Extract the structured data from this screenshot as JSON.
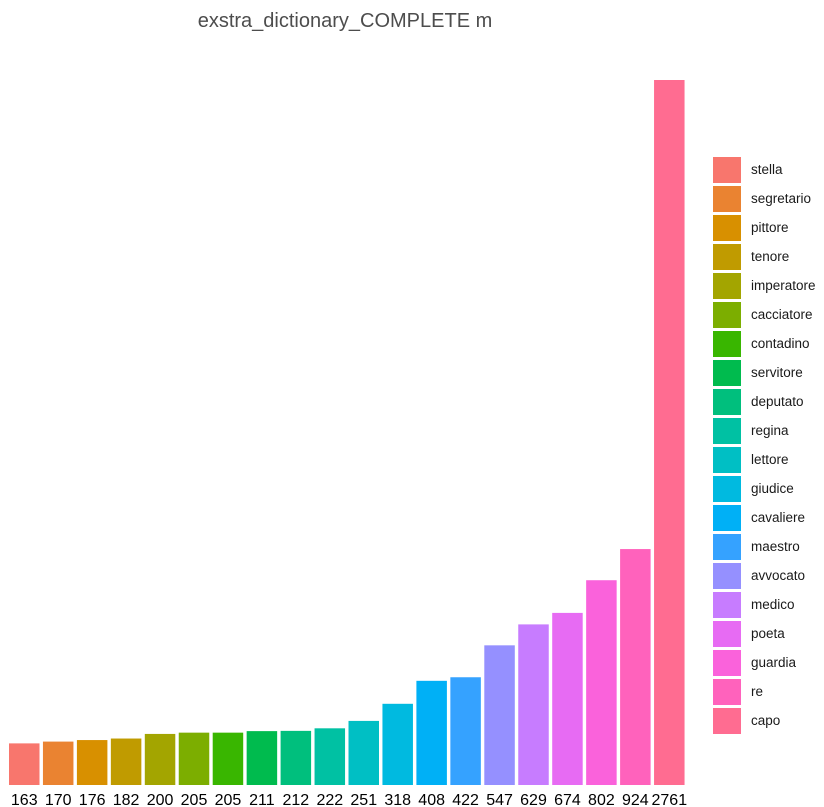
{
  "chart_data": {
    "type": "bar",
    "title": "exstra_dictionary_COMPLETE m",
    "xlabel": "",
    "ylabel": "",
    "ylim": [
      0,
      2761
    ],
    "grid": false,
    "legend_position": "right",
    "categories": [
      "stella",
      "segretario",
      "pittore",
      "tenore",
      "imperatore",
      "cacciatore",
      "contadino",
      "servitore",
      "deputato",
      "regina",
      "lettore",
      "giudice",
      "cavaliere",
      "maestro",
      "avvocato",
      "medico",
      "poeta",
      "guardia",
      "re",
      "capo"
    ],
    "values": [
      163,
      170,
      176,
      182,
      200,
      205,
      205,
      211,
      212,
      222,
      251,
      318,
      408,
      422,
      547,
      629,
      674,
      802,
      924,
      2761
    ],
    "value_labels": [
      "163",
      "170",
      "176",
      "182",
      "200",
      "205",
      "205",
      "211",
      "212",
      "222",
      "251",
      "318",
      "408",
      "422",
      "547",
      "629",
      "674",
      "802",
      "924",
      "2761"
    ],
    "colors": [
      "#F8766D",
      "#EA8331",
      "#D89000",
      "#C09B00",
      "#A3A500",
      "#7CAE00",
      "#39B600",
      "#00BB4E",
      "#00BF7D",
      "#00C1A3",
      "#00BFC4",
      "#00BAE0",
      "#00B0F6",
      "#35A2FF",
      "#9590FF",
      "#C77CFF",
      "#E76BF3",
      "#FA62DB",
      "#FF62BC",
      "#FF6C91"
    ]
  }
}
